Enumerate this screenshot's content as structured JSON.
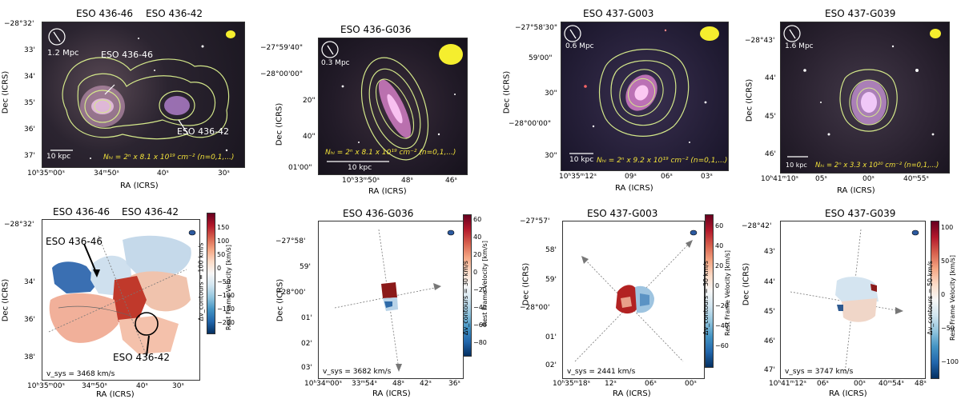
{
  "top": [
    {
      "titles": [
        "ESO 436-46",
        "ESO 436-42"
      ],
      "scale_mpc": "1.2 Mpc",
      "scale_kpc": "10 kpc",
      "yticks": [
        "−28°32'",
        "33'",
        "34'",
        "35'",
        "36'",
        "37'"
      ],
      "xticks": [
        "10ʰ35ᵐ00ˢ",
        "34ᵐ50ˢ",
        "40ˢ",
        "30ˢ"
      ],
      "contour_note": "Nₕᵢ = 2ⁿ x 8.1 x 10¹⁹ cm⁻² (n=0,1,...)",
      "annot1": "ESO 436-46",
      "annot2": "ESO 436-42",
      "xlabel": "RA (ICRS)",
      "ylabel": "Dec (ICRS)"
    },
    {
      "titles": [
        "ESO 436-G036"
      ],
      "scale_mpc": "0.3 Mpc",
      "scale_kpc": "10 kpc",
      "yticks": [
        "−27°59'40\"",
        "−28°00'00\"",
        "20\"",
        "40\"",
        "01'00\""
      ],
      "xticks": [
        "10ʰ33ᵐ50ˢ",
        "48ˢ",
        "46ˢ"
      ],
      "contour_note": "Nₕᵢ = 2ⁿ x 8.1 x 10¹⁹ cm⁻² (n=0,1,...)",
      "xlabel": "RA (ICRS)",
      "ylabel": "Dec (ICRS)"
    },
    {
      "titles": [
        "ESO 437-G003"
      ],
      "scale_mpc": "0.6 Mpc",
      "scale_kpc": "10 kpc",
      "yticks": [
        "−27°58'30\"",
        "59'00\"",
        "30\"",
        "−28°00'00\"",
        "30\""
      ],
      "xticks": [
        "10ʰ35ᵐ12ˢ",
        "09ˢ",
        "06ˢ",
        "03ˢ"
      ],
      "contour_note": "Nₕᵢ = 2ⁿ x 9.2 x 10¹⁹ cm⁻² (n=0,1,...)",
      "xlabel": "RA (ICRS)",
      "ylabel": "Dec (ICRS)"
    },
    {
      "titles": [
        "ESO 437-G039"
      ],
      "scale_mpc": "1.6 Mpc",
      "scale_kpc": "10 kpc",
      "yticks": [
        "−28°43'",
        "44'",
        "45'",
        "46'"
      ],
      "xticks": [
        "10ʰ41ᵐ10ˢ",
        "05ˢ",
        "00ˢ",
        "40ᵐ55ˢ"
      ],
      "contour_note": "Nₕᵢ = 2ⁿ x 3.3 x 10²⁰ cm⁻² (n=0,1,...)",
      "xlabel": "RA (ICRS)",
      "ylabel": "Dec (ICRS)"
    }
  ],
  "bottom": [
    {
      "titles": [
        "ESO 436-46",
        "ESO 436-42"
      ],
      "yticks": [
        "−28°32'",
        "34'",
        "36'",
        "38'"
      ],
      "xticks": [
        "10ʰ35ᵐ00ˢ",
        "34ᵐ50ˢ",
        "40ˢ",
        "30ˢ"
      ],
      "cbar_ticks": [
        "150",
        "100",
        "50",
        "0",
        "−50",
        "−100",
        "−150",
        "−200"
      ],
      "cbar_label": "Rest Frame Velocity [km/s]",
      "contour_label": "Δv_contours = 100 km/s",
      "vsys": "v_sys = 3468 km/s",
      "annot1": "ESO 436-46",
      "annot2": "ESO 436-42",
      "xlabel": "RA (ICRS)",
      "ylabel": "Dec (ICRS)"
    },
    {
      "titles": [
        "ESO 436-G036"
      ],
      "yticks": [
        "−27°58'",
        "59'",
        "−28°00'",
        "01'",
        "02'",
        "03'"
      ],
      "xticks": [
        "10ʰ34ᵐ00ˢ",
        "33ᵐ54ˢ",
        "48ˢ",
        "42ˢ",
        "36ˢ"
      ],
      "cbar_ticks": [
        "60",
        "40",
        "20",
        "0",
        "−20",
        "−40",
        "−60",
        "−80"
      ],
      "cbar_label": "Rest Frame Velocity [km/s]",
      "contour_label": "Δv_contours = 30 km/s",
      "vsys": "v_sys = 3682 km/s",
      "xlabel": "RA (ICRS)",
      "ylabel": "Dec (ICRS)"
    },
    {
      "titles": [
        "ESO 437-G003"
      ],
      "yticks": [
        "−27°57'",
        "58'",
        "59'",
        "−28°00'",
        "01'",
        "02'"
      ],
      "xticks": [
        "10ʰ35ᵐ18ˢ",
        "12ˢ",
        "06ˢ",
        "00ˢ"
      ],
      "cbar_ticks": [
        "60",
        "40",
        "20",
        "0",
        "−20",
        "−40",
        "−60"
      ],
      "cbar_label": "Rest Frame Velocity [km/s]",
      "contour_label": "Δv_contours = 30 km/s",
      "vsys": "v_sys = 2441 km/s",
      "xlabel": "RA (ICRS)",
      "ylabel": "Dec (ICRS)"
    },
    {
      "titles": [
        "ESO 437-G039"
      ],
      "yticks": [
        "−28°42'",
        "43'",
        "44'",
        "45'",
        "46'",
        "47'"
      ],
      "xticks": [
        "10ʰ41ᵐ12ˢ",
        "06ˢ",
        "00ˢ",
        "40ᵐ54ˢ",
        "48ˢ"
      ],
      "cbar_ticks": [
        "100",
        "50",
        "0",
        "−50",
        "−100"
      ],
      "cbar_label": "Rest Frame Velocity [km/s]",
      "contour_label": "Δv_contours = 50 km/s",
      "vsys": "v_sys = 3747 km/s",
      "xlabel": "RA (ICRS)",
      "ylabel": "Dec (ICRS)"
    }
  ]
}
